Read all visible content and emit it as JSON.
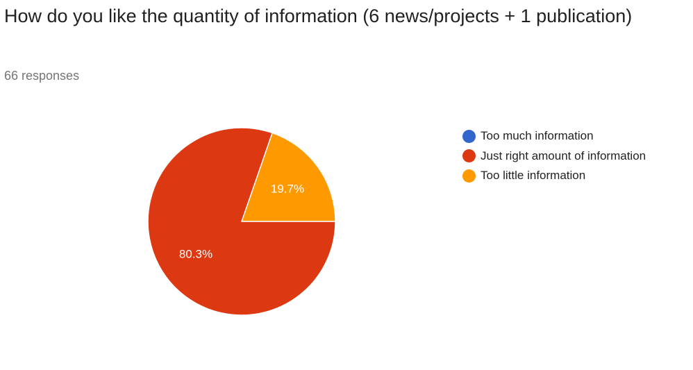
{
  "header": {
    "title": "How do you like the quantity of information (6 news/projects + 1 publication)",
    "responses": "66 responses"
  },
  "colors": {
    "too_much": "#3366cc",
    "just_right": "#dc3912",
    "too_little": "#ff9900"
  },
  "chart_data": {
    "type": "pie",
    "title": "How do you like the quantity of information (6 news/projects + 1 publication)",
    "legend_position": "right",
    "slices": [
      {
        "label": "Too much information",
        "value": 0,
        "display": "",
        "color": "#3366cc"
      },
      {
        "label": "Just right amount of information",
        "value": 80.3,
        "display": "80.3%",
        "color": "#dc3912"
      },
      {
        "label": "Too little information",
        "value": 19.7,
        "display": "19.7%",
        "color": "#ff9900"
      }
    ]
  }
}
